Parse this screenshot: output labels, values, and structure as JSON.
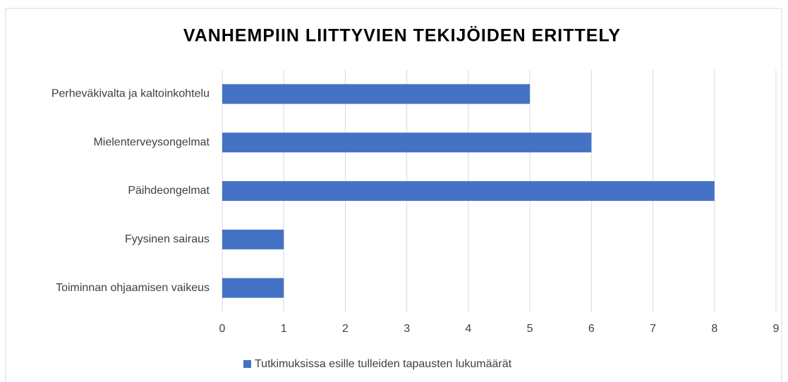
{
  "chart_data": {
    "type": "barh",
    "title": "VANHEMPIIN LIITTYVIEN TEKIJÖIDEN ERITTELY",
    "categories": [
      "Perheväkivalta ja kaltoinkohtelu",
      "Mielenterveysongelmat",
      "Päihdeongelmat",
      "Fyysinen sairaus",
      "Toiminnan ohjaamisen vaikeus"
    ],
    "series": [
      {
        "name": "Tutkimuksissa esille tulleiden tapausten lukumäärät",
        "color": "#4472c4",
        "values": [
          5,
          6,
          8,
          1,
          1
        ]
      }
    ],
    "xlim": [
      0,
      9
    ],
    "xticks": [
      0,
      1,
      2,
      3,
      4,
      5,
      6,
      7,
      8,
      9
    ],
    "grid": true,
    "legend": "bottom"
  }
}
